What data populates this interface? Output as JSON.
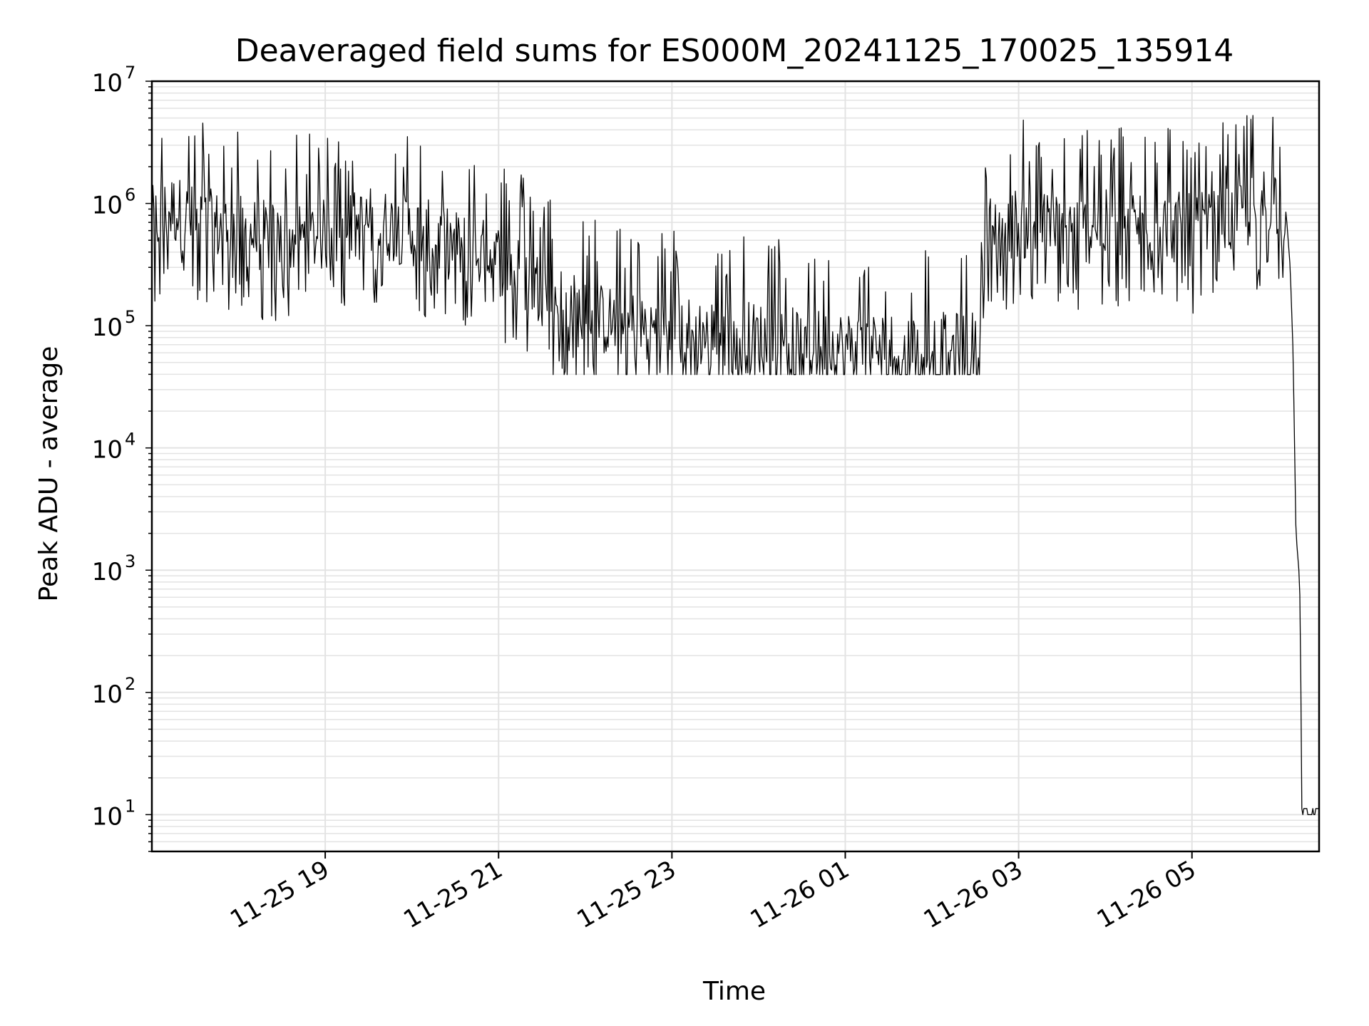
{
  "chart_data": {
    "type": "line",
    "title": "Deaveraged field sums for ES000M_20241125_170025_135914",
    "xlabel": "Time",
    "ylabel": "Peak ADU - average",
    "y_scale": "log",
    "ylim": [
      5,
      10000000
    ],
    "xlim": [
      "2024-11-25T17:00",
      "2024-11-26T06:28"
    ],
    "x_ticks": [
      "2024-11-25T19:00",
      "2024-11-25T21:00",
      "2024-11-25T23:00",
      "2024-11-26T01:00",
      "2024-11-26T03:00",
      "2024-11-26T05:00"
    ],
    "x_tick_labels": [
      "11-25 19",
      "11-25 21",
      "11-25 23",
      "11-26 01",
      "11-26 03",
      "11-26 05"
    ],
    "y_tick_bases": [
      "10",
      "10",
      "10",
      "10",
      "10",
      "10",
      "10"
    ],
    "y_tick_exponents": [
      "1",
      "2",
      "3",
      "4",
      "5",
      "6",
      "7"
    ],
    "grid": true,
    "line_color": "#000000",
    "grid_color": "#e3e3e3",
    "series": [
      {
        "x": [
          "2024-11-25T17:00",
          "2024-11-25T17:15",
          "2024-11-25T17:30",
          "2024-11-25T18:00",
          "2024-11-25T18:30",
          "2024-11-25T19:00",
          "2024-11-25T19:30",
          "2024-11-25T20:00",
          "2024-11-25T20:30",
          "2024-11-25T21:00",
          "2024-11-25T21:30",
          "2024-11-25T22:00",
          "2024-11-25T22:30",
          "2024-11-25T23:00",
          "2024-11-25T23:30",
          "2024-11-26T00:00",
          "2024-11-26T00:30",
          "2024-11-26T01:00",
          "2024-11-26T01:30",
          "2024-11-26T02:00",
          "2024-11-26T02:30",
          "2024-11-26T02:40",
          "2024-11-26T03:00",
          "2024-11-26T03:30",
          "2024-11-26T04:00",
          "2024-11-26T04:30",
          "2024-11-26T05:00",
          "2024-11-26T05:30",
          "2024-11-26T05:55",
          "2024-11-26T06:05",
          "2024-11-26T06:08",
          "2024-11-26T06:10",
          "2024-11-26T06:12",
          "2024-11-26T06:14",
          "2024-11-26T06:15",
          "2024-11-26T06:16",
          "2024-11-26T06:28"
        ],
        "values": [
          700000,
          900000,
          700000,
          600000,
          500000,
          550000,
          700000,
          600000,
          450000,
          350000,
          200000,
          120000,
          100000,
          90000,
          85000,
          80000,
          70000,
          68000,
          66000,
          65000,
          67000,
          600000,
          700000,
          600000,
          650000,
          700000,
          600000,
          700000,
          1200000,
          900000,
          300000,
          60000,
          2000,
          1000,
          500,
          10,
          10
        ]
      }
    ]
  }
}
